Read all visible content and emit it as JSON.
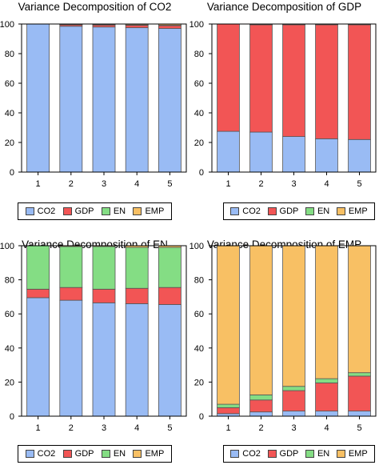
{
  "series_names": [
    "CO2",
    "GDP",
    "EN",
    "EMP"
  ],
  "colors": {
    "CO2": "#99bbf4",
    "GDP": "#f25555",
    "EN": "#84dd84",
    "EMP": "#f8c064"
  },
  "chart_data": [
    {
      "type": "bar",
      "stacked": true,
      "title": "Variance Decomposition of CO2",
      "categories": [
        "1",
        "2",
        "3",
        "4",
        "5"
      ],
      "ylim": [
        0,
        100
      ],
      "yticks": [
        0,
        20,
        40,
        60,
        80,
        100
      ],
      "series": [
        {
          "name": "CO2",
          "values": [
            100,
            98.5,
            98.0,
            97.5,
            97.0
          ]
        },
        {
          "name": "GDP",
          "values": [
            0,
            1.0,
            1.3,
            1.6,
            1.9
          ]
        },
        {
          "name": "EN",
          "values": [
            0,
            0.1,
            0.2,
            0.3,
            0.3
          ]
        },
        {
          "name": "EMP",
          "values": [
            0,
            0.4,
            0.5,
            0.6,
            0.8
          ]
        }
      ]
    },
    {
      "type": "bar",
      "stacked": true,
      "title": "Variance Decomposition of GDP",
      "categories": [
        "1",
        "2",
        "3",
        "4",
        "5"
      ],
      "ylim": [
        0,
        100
      ],
      "yticks": [
        0,
        20,
        40,
        60,
        80,
        100
      ],
      "series": [
        {
          "name": "CO2",
          "values": [
            27.5,
            27.0,
            24.0,
            22.5,
            22.0
          ]
        },
        {
          "name": "GDP",
          "values": [
            72.5,
            72.5,
            75.5,
            77.0,
            77.5
          ]
        },
        {
          "name": "EN",
          "values": [
            0,
            0.2,
            0.2,
            0.2,
            0.2
          ]
        },
        {
          "name": "EMP",
          "values": [
            0,
            0.3,
            0.3,
            0.3,
            0.3
          ]
        }
      ]
    },
    {
      "type": "bar",
      "stacked": true,
      "title": "Variance Decomposition of EN",
      "categories": [
        "1",
        "2",
        "3",
        "4",
        "5"
      ],
      "ylim": [
        0,
        100
      ],
      "yticks": [
        0,
        20,
        40,
        60,
        80,
        100
      ],
      "series": [
        {
          "name": "CO2",
          "values": [
            69.5,
            68.0,
            66.5,
            66.0,
            65.5
          ]
        },
        {
          "name": "GDP",
          "values": [
            5.0,
            7.5,
            8.0,
            9.0,
            10.0
          ]
        },
        {
          "name": "EN",
          "values": [
            25.5,
            24.0,
            25.0,
            24.0,
            23.5
          ]
        },
        {
          "name": "EMP",
          "values": [
            0,
            0.5,
            0.5,
            1.0,
            1.0
          ]
        }
      ]
    },
    {
      "type": "bar",
      "stacked": true,
      "title": "Variance Decomposition of EMP",
      "categories": [
        "1",
        "2",
        "3",
        "4",
        "5"
      ],
      "ylim": [
        0,
        100
      ],
      "yticks": [
        0,
        20,
        40,
        60,
        80,
        100
      ],
      "series": [
        {
          "name": "CO2",
          "values": [
            1.5,
            2.5,
            3.0,
            3.0,
            3.0
          ]
        },
        {
          "name": "GDP",
          "values": [
            3.5,
            7.0,
            12.0,
            16.5,
            20.5
          ]
        },
        {
          "name": "EN",
          "values": [
            2.0,
            3.0,
            2.5,
            2.5,
            2.0
          ]
        },
        {
          "name": "EMP",
          "values": [
            93.0,
            87.5,
            82.5,
            78.0,
            74.5
          ]
        }
      ]
    }
  ]
}
